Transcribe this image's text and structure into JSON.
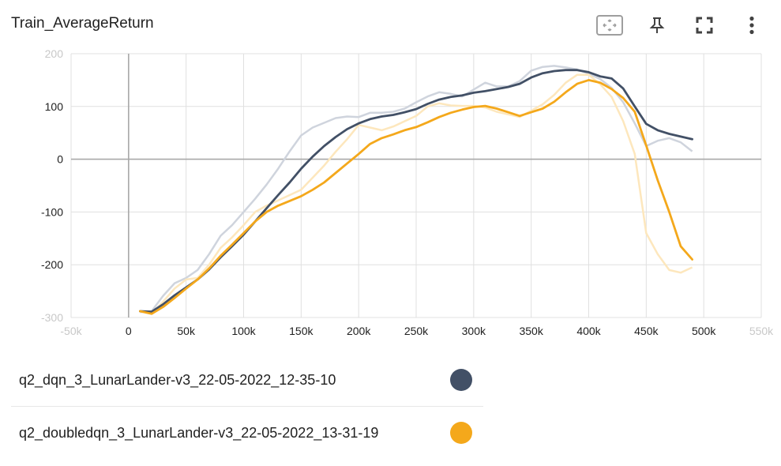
{
  "header": {
    "title": "Train_AverageReturn",
    "tools": [
      {
        "name": "fit-domain-icon"
      },
      {
        "name": "pin-icon"
      },
      {
        "name": "fullscreen-icon"
      },
      {
        "name": "more-vert-icon"
      }
    ]
  },
  "chart_data": {
    "type": "line",
    "title": "Train_AverageReturn",
    "xlim": [
      -50000,
      550000
    ],
    "ylim": [
      -300,
      200
    ],
    "x_ticks": [
      {
        "value": -50000,
        "label": "-50k",
        "faded": true
      },
      {
        "value": 0,
        "label": "0"
      },
      {
        "value": 50000,
        "label": "50k"
      },
      {
        "value": 100000,
        "label": "100k"
      },
      {
        "value": 150000,
        "label": "150k"
      },
      {
        "value": 200000,
        "label": "200k"
      },
      {
        "value": 250000,
        "label": "250k"
      },
      {
        "value": 300000,
        "label": "300k"
      },
      {
        "value": 350000,
        "label": "350k"
      },
      {
        "value": 400000,
        "label": "400k"
      },
      {
        "value": 450000,
        "label": "450k"
      },
      {
        "value": 500000,
        "label": "500k"
      },
      {
        "value": 550000,
        "label": "550k",
        "faded": true
      }
    ],
    "y_ticks": [
      {
        "value": 200,
        "label": "200",
        "faded": true
      },
      {
        "value": 100,
        "label": "100"
      },
      {
        "value": 0,
        "label": "0"
      },
      {
        "value": -100,
        "label": "-100"
      },
      {
        "value": -200,
        "label": "-200"
      },
      {
        "value": -300,
        "label": "-300",
        "faded": true
      }
    ],
    "grid": true,
    "series": [
      {
        "name": "q2_dqn_3_LunarLander-v3_22-05-2022_12-35-10",
        "color": "#425066",
        "raw_color": "#cfd4dd",
        "x": [
          10000,
          20000,
          30000,
          40000,
          50000,
          60000,
          70000,
          80000,
          90000,
          100000,
          110000,
          120000,
          130000,
          140000,
          150000,
          160000,
          170000,
          180000,
          190000,
          200000,
          210000,
          220000,
          230000,
          240000,
          250000,
          260000,
          270000,
          280000,
          290000,
          300000,
          310000,
          320000,
          330000,
          340000,
          350000,
          360000,
          370000,
          380000,
          390000,
          400000,
          410000,
          420000,
          430000,
          440000,
          450000,
          460000,
          470000,
          480000,
          490000
        ],
        "smoothed": [
          -288,
          -289,
          -275,
          -258,
          -243,
          -228,
          -209,
          -186,
          -165,
          -143,
          -118,
          -93,
          -68,
          -44,
          -18,
          5,
          25,
          42,
          57,
          68,
          76,
          81,
          84,
          89,
          95,
          105,
          113,
          118,
          121,
          126,
          129,
          133,
          137,
          143,
          155,
          163,
          167,
          169,
          169,
          165,
          157,
          153,
          134,
          100,
          67,
          55,
          48,
          43,
          38
        ],
        "raw": [
          -290,
          -288,
          -259,
          -235,
          -225,
          -210,
          -180,
          -145,
          -125,
          -100,
          -75,
          -48,
          -18,
          15,
          45,
          60,
          69,
          78,
          81,
          80,
          88,
          88,
          90,
          96,
          108,
          119,
          127,
          124,
          119,
          132,
          145,
          138,
          138,
          148,
          168,
          175,
          177,
          174,
          170,
          162,
          152,
          135,
          108,
          68,
          25,
          35,
          40,
          32,
          15
        ]
      },
      {
        "name": "q2_doubledqn_3_LunarLander-v3_22-05-2022_13-31-19",
        "color": "#f4a81b",
        "raw_color": "#fde7bd",
        "x": [
          10000,
          20000,
          30000,
          40000,
          50000,
          60000,
          70000,
          80000,
          90000,
          100000,
          110000,
          120000,
          130000,
          140000,
          150000,
          160000,
          170000,
          180000,
          190000,
          200000,
          210000,
          220000,
          230000,
          240000,
          250000,
          260000,
          270000,
          280000,
          290000,
          300000,
          310000,
          320000,
          330000,
          340000,
          350000,
          360000,
          370000,
          380000,
          390000,
          400000,
          410000,
          420000,
          430000,
          440000,
          450000,
          460000,
          470000,
          480000,
          490000
        ],
        "smoothed": [
          -288,
          -293,
          -280,
          -263,
          -245,
          -228,
          -207,
          -183,
          -162,
          -140,
          -118,
          -100,
          -88,
          -79,
          -70,
          -58,
          -44,
          -26,
          -8,
          10,
          29,
          40,
          47,
          55,
          61,
          70,
          80,
          88,
          94,
          99,
          101,
          96,
          89,
          82,
          89,
          96,
          109,
          127,
          143,
          150,
          145,
          133,
          116,
          90,
          26,
          -40,
          -100,
          -165,
          -190
        ],
        "raw": [
          -288,
          -293,
          -270,
          -245,
          -228,
          -225,
          -200,
          -168,
          -148,
          -125,
          -100,
          -88,
          -78,
          -68,
          -58,
          -35,
          -12,
          14,
          38,
          65,
          60,
          55,
          62,
          72,
          82,
          100,
          106,
          102,
          101,
          101,
          98,
          90,
          85,
          80,
          92,
          104,
          122,
          145,
          160,
          160,
          142,
          118,
          72,
          10,
          -140,
          -180,
          -210,
          -215,
          -205
        ]
      }
    ]
  },
  "legend": {
    "items": [
      {
        "label": "q2_dqn_3_LunarLander-v3_22-05-2022_12-35-10",
        "color": "#425066"
      },
      {
        "label": "q2_doubledqn_3_LunarLander-v3_22-05-2022_13-31-19",
        "color": "#f4a81b"
      }
    ]
  }
}
